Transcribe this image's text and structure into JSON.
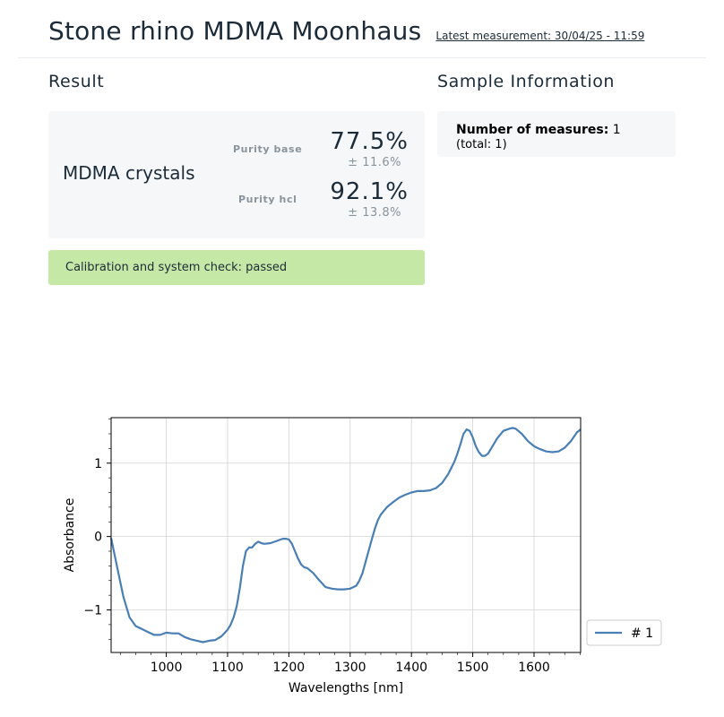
{
  "header": {
    "title": "Stone rhino MDMA Moonhaus",
    "latest_measurement": "Latest measurement: 30/04/25 - 11:59"
  },
  "result": {
    "heading": "Result",
    "substance": "MDMA crystals",
    "purity_base_label": "Purity base",
    "purity_base_value": "77.5%",
    "purity_base_error": "± 11.6%",
    "purity_hcl_label": "Purity hcl",
    "purity_hcl_value": "92.1%",
    "purity_hcl_error": "± 13.8%",
    "calibration": "Calibration and system check: passed"
  },
  "sample": {
    "heading": "Sample Information",
    "measures_label": "Number of measures:",
    "measures_value": "1",
    "total": "(total: 1)"
  },
  "colors": {
    "calibration_ok": "#c5e8a6",
    "series_line": "#4a7fb5",
    "card_bg": "#f5f7f9"
  },
  "chart_data": {
    "type": "line",
    "title": "",
    "xlabel": "Wavelengths [nm]",
    "ylabel": "Absorbance",
    "xlim": [
      910,
      1676
    ],
    "ylim": [
      -1.58,
      1.62
    ],
    "xticks": [
      1000,
      1100,
      1200,
      1300,
      1400,
      1500,
      1600
    ],
    "xtick_labels": [
      "1000",
      "1100",
      "1200",
      "1300",
      "1400",
      "1500",
      "1600"
    ],
    "yticks": [
      -1,
      0,
      1
    ],
    "ytick_labels": [
      "−1",
      "0",
      "1"
    ],
    "grid": true,
    "legend_position": "outside-right",
    "series": [
      {
        "name": "# 1",
        "x": [
          910,
          920,
          930,
          940,
          950,
          960,
          970,
          980,
          990,
          1000,
          1010,
          1020,
          1030,
          1040,
          1050,
          1060,
          1070,
          1080,
          1090,
          1100,
          1105,
          1110,
          1115,
          1120,
          1125,
          1130,
          1135,
          1140,
          1145,
          1150,
          1155,
          1160,
          1170,
          1180,
          1190,
          1195,
          1200,
          1205,
          1210,
          1215,
          1220,
          1225,
          1230,
          1240,
          1250,
          1260,
          1270,
          1280,
          1290,
          1300,
          1310,
          1315,
          1320,
          1325,
          1330,
          1335,
          1340,
          1345,
          1350,
          1360,
          1370,
          1380,
          1390,
          1400,
          1410,
          1420,
          1430,
          1440,
          1450,
          1460,
          1470,
          1475,
          1480,
          1485,
          1490,
          1495,
          1500,
          1505,
          1510,
          1515,
          1520,
          1525,
          1530,
          1540,
          1550,
          1560,
          1565,
          1570,
          1580,
          1590,
          1600,
          1610,
          1620,
          1630,
          1640,
          1650,
          1660,
          1670,
          1676
        ],
        "y": [
          -0.02,
          -0.42,
          -0.82,
          -1.1,
          -1.22,
          -1.26,
          -1.3,
          -1.34,
          -1.34,
          -1.31,
          -1.32,
          -1.32,
          -1.37,
          -1.4,
          -1.42,
          -1.44,
          -1.42,
          -1.41,
          -1.36,
          -1.27,
          -1.2,
          -1.1,
          -0.95,
          -0.7,
          -0.4,
          -0.2,
          -0.15,
          -0.15,
          -0.1,
          -0.07,
          -0.09,
          -0.1,
          -0.09,
          -0.06,
          -0.03,
          -0.03,
          -0.04,
          -0.1,
          -0.2,
          -0.3,
          -0.38,
          -0.42,
          -0.43,
          -0.5,
          -0.6,
          -0.69,
          -0.71,
          -0.72,
          -0.72,
          -0.71,
          -0.67,
          -0.6,
          -0.5,
          -0.35,
          -0.2,
          -0.05,
          0.1,
          0.22,
          0.3,
          0.4,
          0.47,
          0.53,
          0.57,
          0.6,
          0.62,
          0.62,
          0.63,
          0.66,
          0.73,
          0.85,
          1.02,
          1.13,
          1.26,
          1.4,
          1.46,
          1.44,
          1.35,
          1.23,
          1.15,
          1.1,
          1.1,
          1.13,
          1.2,
          1.34,
          1.44,
          1.47,
          1.48,
          1.47,
          1.4,
          1.3,
          1.23,
          1.19,
          1.16,
          1.15,
          1.16,
          1.21,
          1.3,
          1.42,
          1.46
        ]
      }
    ]
  }
}
